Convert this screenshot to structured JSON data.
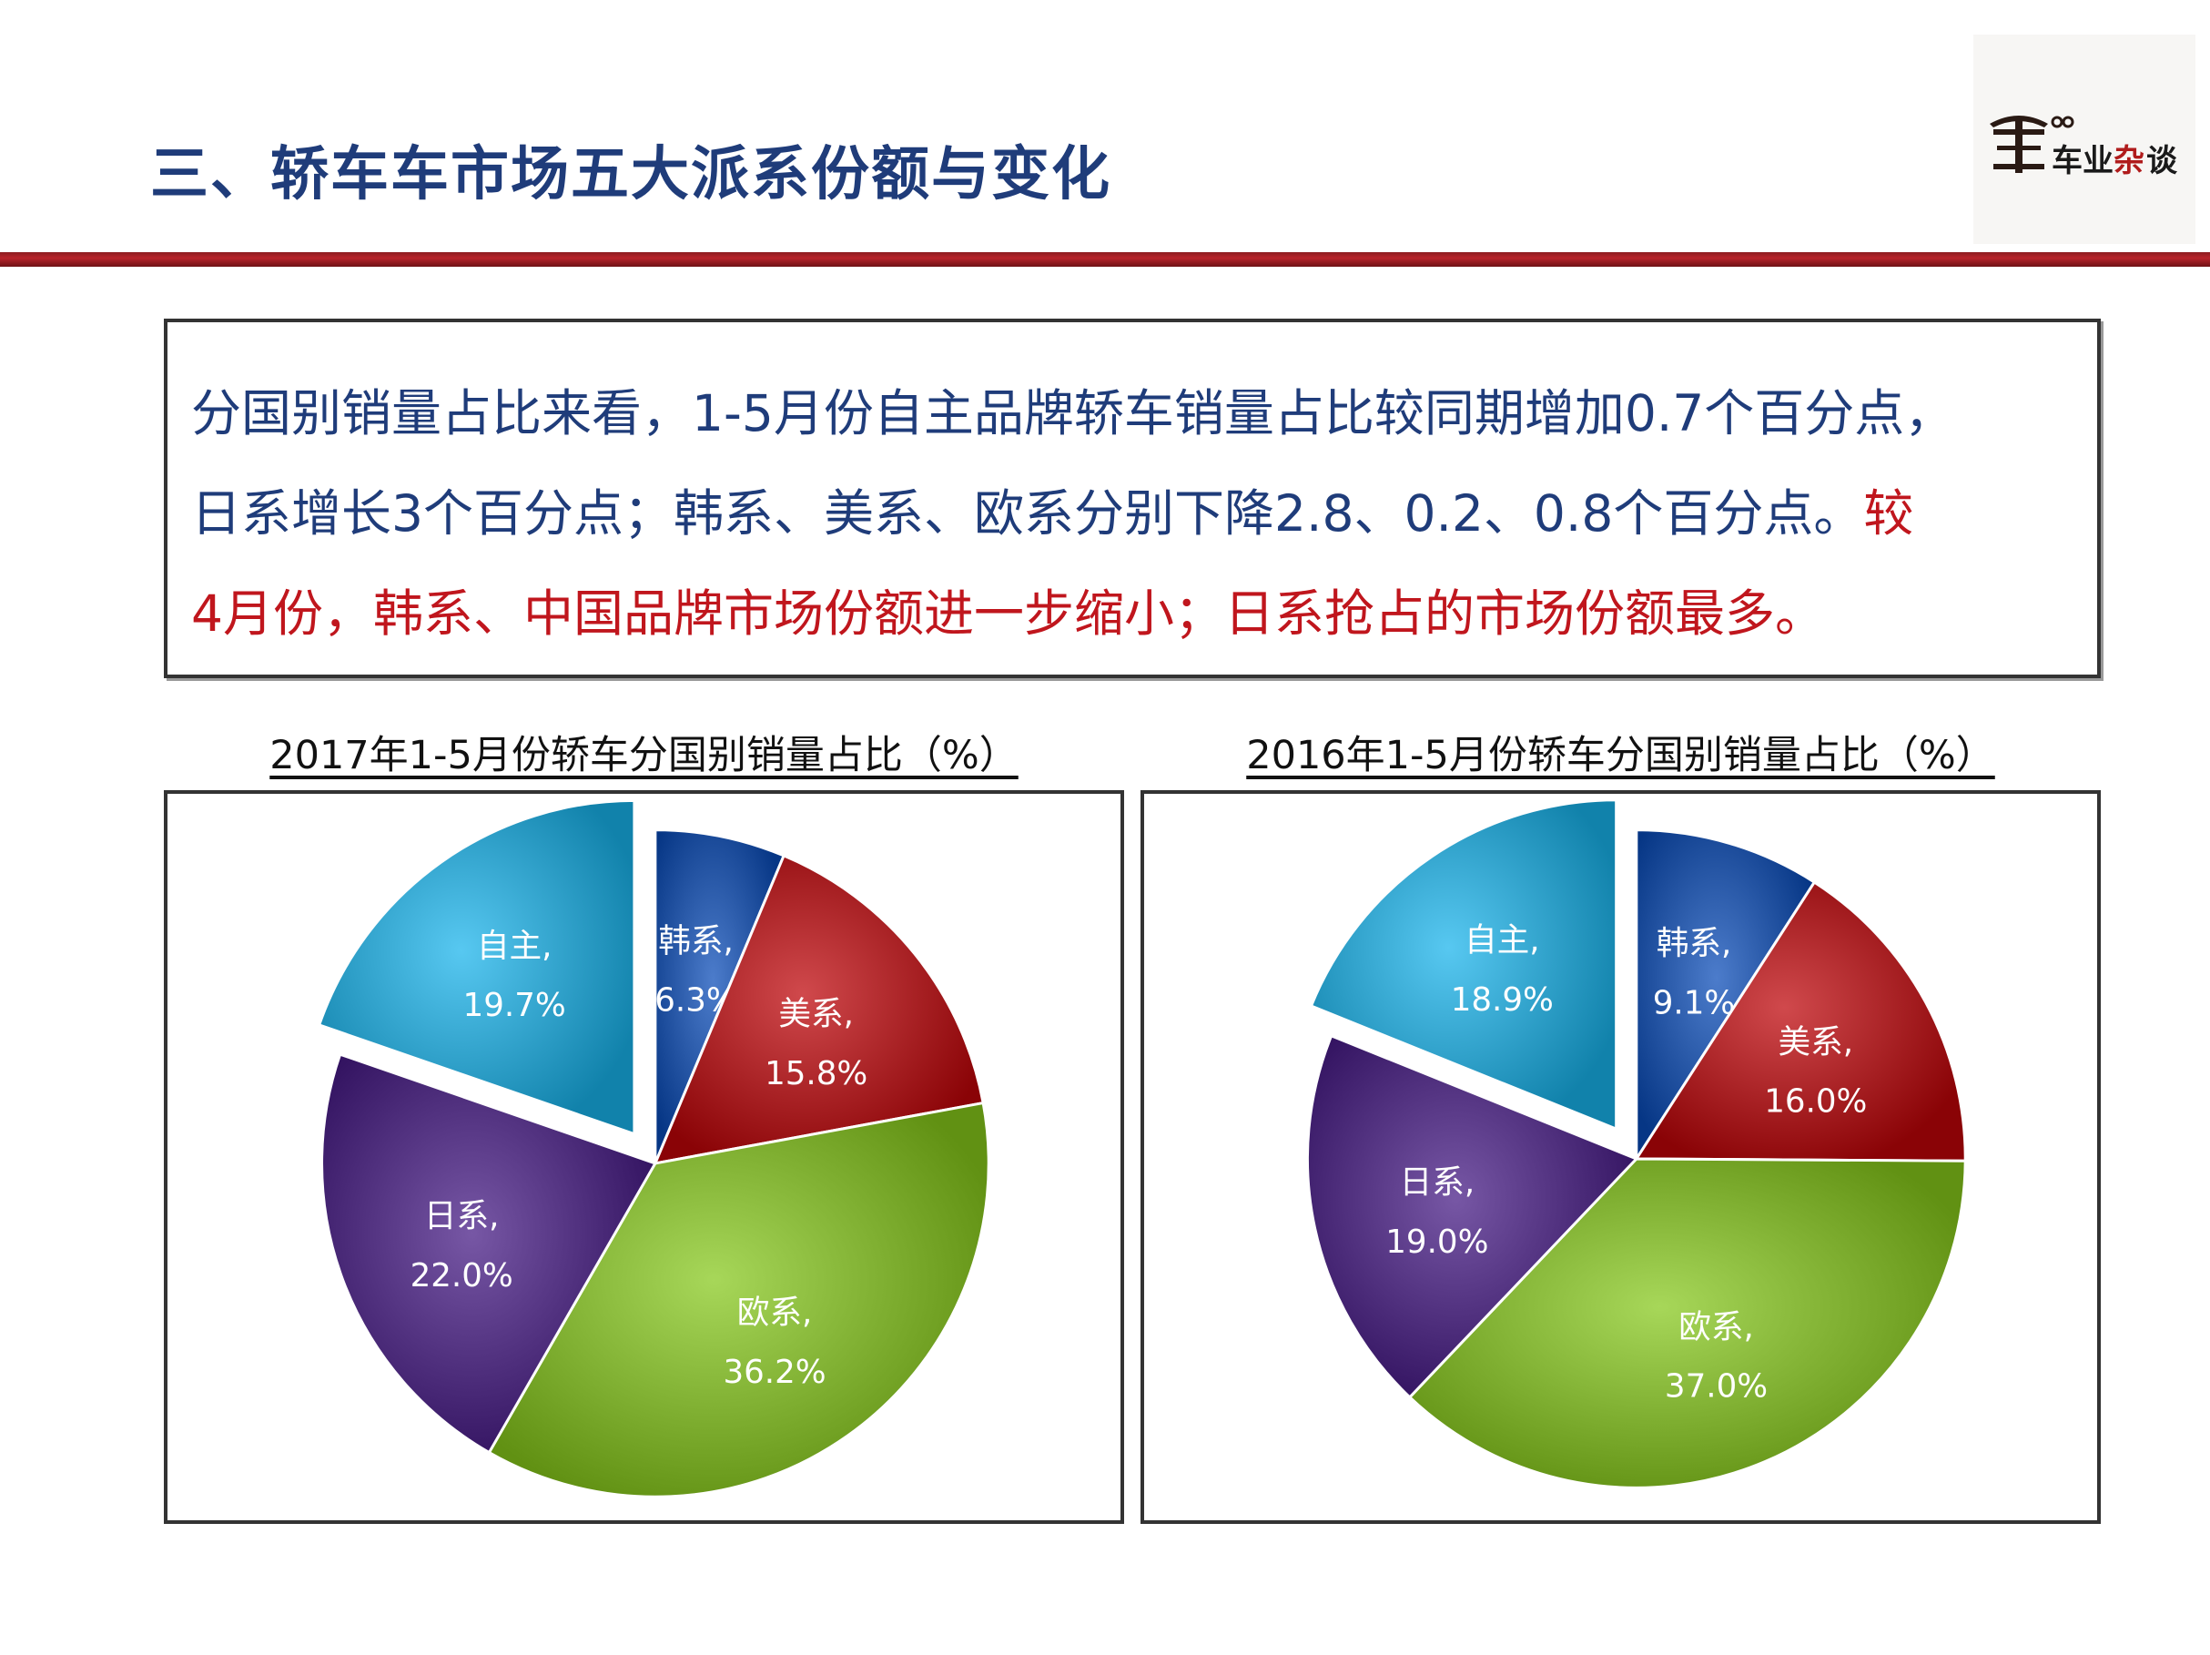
{
  "header": {
    "title": "三、轿车车市场五大派系份额与变化",
    "logo_text": "车业杂谈"
  },
  "summary": {
    "line1": "分国别销量占比来看，1-5月份自主品牌轿车销量占比较同期增加0.7个百分点，",
    "line2_blue": "日系增长3个百分点；韩系、美系、欧系分别下降2.8、0.2、0.8个百分点。",
    "line2_red": "较",
    "line3": "4月份，韩系、中国品牌市场份额进一步缩小；日系抢占的市场份额最多。",
    "colors": {
      "text": "#1f3c7a",
      "highlight": "#c0161d"
    }
  },
  "chart_data": [
    {
      "type": "pie",
      "title": "2017年1-5月份轿车分国别销量占比（%）",
      "slices": [
        {
          "name": "韩系",
          "value": 6.3,
          "label": "6.3%",
          "color": "#1f4f9e"
        },
        {
          "name": "美系",
          "value": 15.8,
          "label": "15.8%",
          "color": "#a31c1f"
        },
        {
          "name": "欧系",
          "value": 36.2,
          "label": "36.2%",
          "color": "#7aaa2c"
        },
        {
          "name": "日系",
          "value": 22.0,
          "label": "22.0%",
          "color": "#4a2a78"
        },
        {
          "name": "自主",
          "value": 19.7,
          "label": "19.7%",
          "color": "#2a9bc4",
          "exploded": true
        }
      ]
    },
    {
      "type": "pie",
      "title": "2016年1-5月份轿车分国别销量占比（%）",
      "slices": [
        {
          "name": "韩系",
          "value": 9.1,
          "label": "9.1%",
          "color": "#1f4f9e"
        },
        {
          "name": "美系",
          "value": 16.0,
          "label": "16.0%",
          "color": "#a31c1f"
        },
        {
          "name": "欧系",
          "value": 37.0,
          "label": "37.0%",
          "color": "#7aaa2c"
        },
        {
          "name": "日系",
          "value": 19.0,
          "label": "19.0%",
          "color": "#4a2a78"
        },
        {
          "name": "自主",
          "value": 18.9,
          "label": "18.9%",
          "color": "#2a9bc4",
          "exploded": true
        }
      ]
    }
  ]
}
